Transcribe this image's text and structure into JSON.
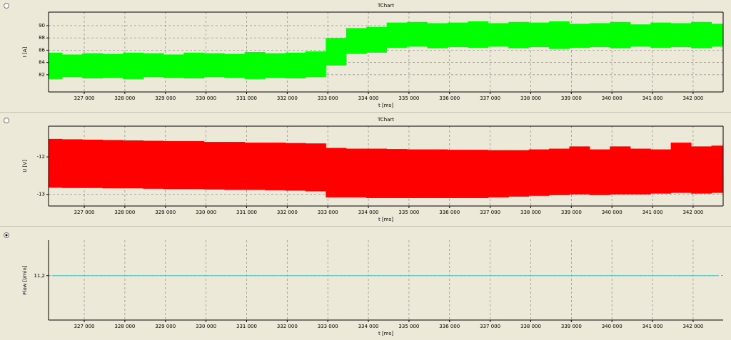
{
  "chart_data": [
    {
      "type": "band",
      "title": "TChart",
      "xlabel": "t [ms]",
      "ylabel": "I [A]",
      "color": "#00ff00",
      "grid": true,
      "x": [
        326200,
        326700,
        327200,
        327700,
        328200,
        328700,
        329200,
        329700,
        330200,
        330700,
        331200,
        331700,
        332200,
        332700,
        333200,
        333700,
        334200,
        334700,
        335200,
        335700,
        336200,
        336700,
        337200,
        337700,
        338200,
        338700,
        339200,
        339700,
        340200,
        340700,
        341200,
        341700,
        342200,
        342700
      ],
      "high": [
        85.6,
        85.3,
        85.5,
        85.4,
        85.6,
        85.5,
        85.3,
        85.6,
        85.5,
        85.4,
        85.7,
        85.5,
        85.6,
        85.8,
        88.0,
        89.6,
        89.8,
        90.5,
        90.6,
        90.4,
        90.5,
        90.7,
        90.4,
        90.6,
        90.5,
        90.7,
        90.3,
        90.4,
        90.6,
        90.2,
        90.5,
        90.4,
        90.6,
        90.3
      ],
      "low": [
        81.3,
        81.6,
        81.4,
        81.5,
        81.3,
        81.6,
        81.5,
        81.4,
        81.6,
        81.5,
        81.3,
        81.5,
        81.4,
        81.6,
        83.5,
        85.4,
        85.6,
        86.4,
        86.6,
        86.3,
        86.5,
        86.4,
        86.6,
        86.3,
        86.5,
        86.2,
        86.4,
        86.5,
        86.3,
        86.6,
        86.4,
        86.5,
        86.3,
        86.6
      ],
      "xlim": [
        326120,
        342740
      ],
      "ylim": [
        79.2,
        92.2
      ],
      "yticks": [
        82,
        84,
        86,
        88,
        90
      ],
      "xticks": [
        {
          "value": 327000,
          "label": "327 000"
        },
        {
          "value": 328000,
          "label": "328 000"
        },
        {
          "value": 329000,
          "label": "329 000"
        },
        {
          "value": 330000,
          "label": "330 000"
        },
        {
          "value": 331000,
          "label": "331 000"
        },
        {
          "value": 332000,
          "label": "332 000"
        },
        {
          "value": 333000,
          "label": "333 000"
        },
        {
          "value": 334000,
          "label": "334 000"
        },
        {
          "value": 335000,
          "label": "335 000"
        },
        {
          "value": 336000,
          "label": "336 000"
        },
        {
          "value": 337000,
          "label": "337 000"
        },
        {
          "value": 338000,
          "label": "338 000"
        },
        {
          "value": 339000,
          "label": "339 000"
        },
        {
          "value": 340000,
          "label": "340 000"
        },
        {
          "value": 341000,
          "label": "341 000"
        },
        {
          "value": 342000,
          "label": "342 000"
        }
      ]
    },
    {
      "type": "band",
      "title": "TChart",
      "xlabel": "t [ms]",
      "ylabel": "U [V]",
      "color": "#ff0000",
      "grid": true,
      "x": [
        326200,
        326700,
        327200,
        327700,
        328200,
        328700,
        329200,
        329700,
        330200,
        330700,
        331200,
        331700,
        332200,
        332700,
        333200,
        333700,
        334200,
        334700,
        335200,
        335700,
        336200,
        336700,
        337200,
        337700,
        338200,
        338700,
        339200,
        339700,
        340200,
        340700,
        341200,
        341700,
        342200,
        342700
      ],
      "high": [
        -11.52,
        -11.53,
        -11.54,
        -11.55,
        -11.56,
        -11.57,
        -11.58,
        -11.58,
        -11.6,
        -11.6,
        -11.62,
        -11.62,
        -11.63,
        -11.64,
        -11.76,
        -11.78,
        -11.78,
        -11.79,
        -11.8,
        -11.8,
        -11.81,
        -11.81,
        -11.82,
        -11.82,
        -11.8,
        -11.78,
        -11.72,
        -11.8,
        -11.72,
        -11.78,
        -11.8,
        -11.62,
        -11.72,
        -11.7
      ],
      "low": [
        -12.82,
        -12.83,
        -12.83,
        -12.84,
        -12.84,
        -12.85,
        -12.86,
        -12.86,
        -12.87,
        -12.88,
        -12.88,
        -12.89,
        -12.9,
        -12.92,
        -13.08,
        -13.08,
        -13.1,
        -13.1,
        -13.1,
        -13.1,
        -13.1,
        -13.1,
        -13.08,
        -13.06,
        -13.04,
        -13.02,
        -13.0,
        -13.02,
        -13.0,
        -13.0,
        -12.98,
        -12.96,
        -12.98,
        -12.96
      ],
      "xlim": [
        326120,
        342740
      ],
      "ylim": [
        -13.31,
        -11.18
      ],
      "yticks": [
        -13,
        -12
      ],
      "xticks": [
        {
          "value": 327000,
          "label": "327 000"
        },
        {
          "value": 328000,
          "label": "328 000"
        },
        {
          "value": 329000,
          "label": "329 000"
        },
        {
          "value": 330000,
          "label": "330 000"
        },
        {
          "value": 331000,
          "label": "331 000"
        },
        {
          "value": 332000,
          "label": "332 000"
        },
        {
          "value": 333000,
          "label": "333 000"
        },
        {
          "value": 334000,
          "label": "334 000"
        },
        {
          "value": 335000,
          "label": "335 000"
        },
        {
          "value": 336000,
          "label": "336 000"
        },
        {
          "value": 337000,
          "label": "337 000"
        },
        {
          "value": 338000,
          "label": "338 000"
        },
        {
          "value": 339000,
          "label": "339 000"
        },
        {
          "value": 340000,
          "label": "340 000"
        },
        {
          "value": 341000,
          "label": "341 000"
        },
        {
          "value": 342000,
          "label": "342 000"
        }
      ]
    },
    {
      "type": "line",
      "xlabel": "t [ms]",
      "ylabel": "Flow [l/min]",
      "color": "#40c8c8",
      "grid": true,
      "x": [
        326200,
        342600
      ],
      "values": [
        11.2,
        11.2
      ],
      "xlim": [
        326120,
        342740
      ],
      "ylim": [
        10.7,
        11.6
      ],
      "yticks": [
        {
          "value": 11.2,
          "label": "11,2"
        }
      ],
      "xticks": [
        {
          "value": 327000,
          "label": "327 000"
        },
        {
          "value": 328000,
          "label": "328 000"
        },
        {
          "value": 329000,
          "label": "329 000"
        },
        {
          "value": 330000,
          "label": "330 000"
        },
        {
          "value": 331000,
          "label": "331 000"
        },
        {
          "value": 332000,
          "label": "332 000"
        },
        {
          "value": 333000,
          "label": "333 000"
        },
        {
          "value": 334000,
          "label": "334 000"
        },
        {
          "value": 335000,
          "label": "335 000"
        },
        {
          "value": 336000,
          "label": "336 000"
        },
        {
          "value": 337000,
          "label": "337 000"
        },
        {
          "value": 338000,
          "label": "338 000"
        },
        {
          "value": 339000,
          "label": "339 000"
        },
        {
          "value": 340000,
          "label": "340 000"
        },
        {
          "value": 341000,
          "label": "341 000"
        },
        {
          "value": 342000,
          "label": "342 000"
        }
      ]
    }
  ]
}
